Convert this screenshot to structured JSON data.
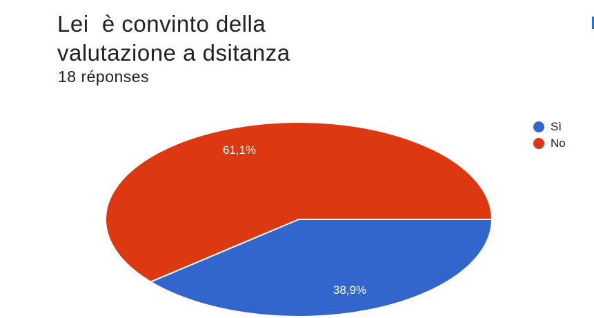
{
  "header": {
    "title": "Lei  è convinto della\nvalutazione a dsitanza",
    "responses": "18 réponses"
  },
  "colors": {
    "si": "#3366cc",
    "no": "#dc3912"
  },
  "chart_data": {
    "type": "pie",
    "title": "Lei  è convinto della valutazione a dsitanza",
    "slices": [
      {
        "label": "Sì",
        "value": 38.9,
        "value_label": "38,9%",
        "color": "#3366cc"
      },
      {
        "label": "No",
        "value": 61.1,
        "value_label": "61,1%",
        "color": "#dc3912"
      }
    ],
    "legend_position": "right"
  }
}
